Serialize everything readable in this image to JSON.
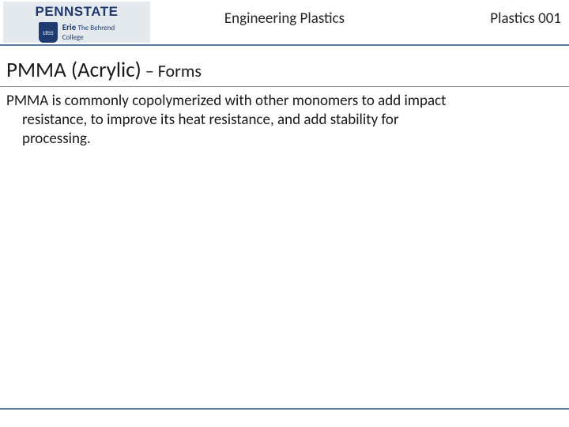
{
  "header": {
    "logo_wordmark": "PENNSTATE",
    "logo_shield_year": "1855",
    "logo_erie": "Erie",
    "logo_behrend_line1": "The Behrend",
    "logo_behrend_line2": "College",
    "center_title": "Engineering Plastics",
    "right_label": "Plastics 001"
  },
  "title": {
    "main": "PMMA (Acrylic)",
    "connector": " – ",
    "sub": "Forms"
  },
  "body": {
    "line1": "PMMA is commonly copolymerized with other monomers to add impact",
    "line2": "resistance, to improve its heat resistance, and add stability for",
    "line3": "processing."
  },
  "colors": {
    "rule": "#5a7a9e",
    "logo_bg": "#e4e9ed",
    "logo_fg": "#1e3a6e"
  }
}
